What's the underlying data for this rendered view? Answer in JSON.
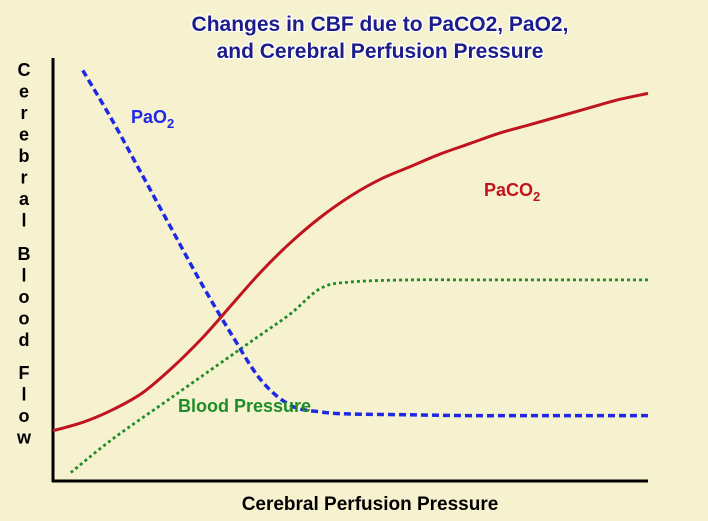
{
  "chart_data": {
    "type": "line",
    "title": [
      "Changes in CBF due to PaCO2, PaO2,",
      "and Cerebral Perfusion Pressure"
    ],
    "xlabel": "Cerebral Perfusion Pressure",
    "ylabel": "Cerebral Blood Flow",
    "xlim": [
      0,
      100
    ],
    "ylim": [
      0,
      100
    ],
    "grid": false,
    "legend": "none",
    "series": [
      {
        "name": "PaCO",
        "subscript": "2",
        "color": "#c0141e",
        "style": "solid",
        "x": [
          0,
          5,
          10,
          15,
          20,
          25,
          30,
          35,
          40,
          45,
          50,
          55,
          60,
          65,
          70,
          75,
          80,
          85,
          90,
          95,
          100
        ],
        "y": [
          12,
          14,
          17,
          21,
          27,
          34,
          42,
          50,
          57,
          63,
          68,
          72,
          75,
          78,
          80.5,
          83,
          85,
          87,
          89,
          91,
          92.5
        ]
      },
      {
        "name": "PaO",
        "subscript": "2",
        "color": "#1e28e6",
        "style": "dashed",
        "x": [
          5,
          10,
          15,
          20,
          25,
          30,
          35,
          40,
          45,
          50,
          60,
          70,
          80,
          90,
          100
        ],
        "y": [
          98,
          86,
          73,
          60,
          47,
          35,
          24,
          18,
          16.5,
          16,
          15.8,
          15.6,
          15.6,
          15.6,
          15.6
        ]
      },
      {
        "name": "Blood Pressure",
        "color": "#1e8c28",
        "style": "dotted",
        "x": [
          3,
          10,
          20,
          30,
          35,
          40,
          45,
          50,
          60,
          70,
          80,
          90,
          100
        ],
        "y": [
          2,
          10,
          20,
          30,
          35,
          40,
          46,
          47.5,
          48,
          48,
          48,
          48,
          48
        ]
      }
    ]
  }
}
